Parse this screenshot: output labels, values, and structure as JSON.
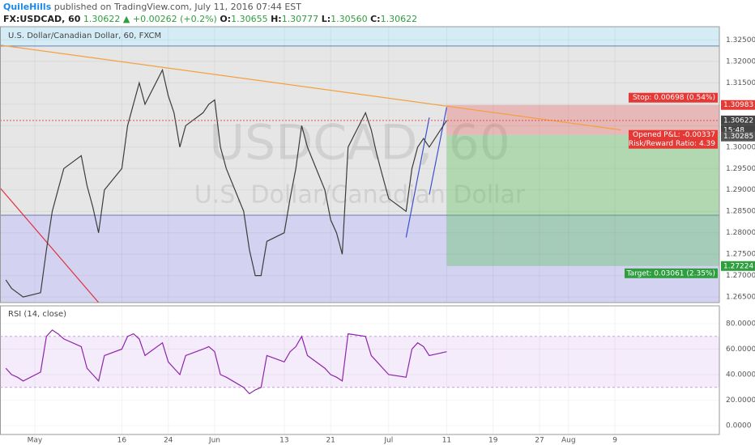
{
  "header": {
    "author": "QuileHills",
    "published": "published on TradingView.com, July 11, 2016 07:44 EST",
    "symbol": "FX:USDCAD, 60",
    "last": "1.30622",
    "change": "▲ +0.00262 (+0.2%)",
    "ohlc": [
      {
        "key": "O:",
        "value": "1.30655"
      },
      {
        "key": "H:",
        "value": "1.30777"
      },
      {
        "key": "L:",
        "value": "1.30560"
      },
      {
        "key": "C:",
        "value": "1.30622"
      }
    ]
  },
  "chart_data": [
    {
      "type": "line",
      "title": "U.S. Dollar/Canadian Dollar, 60, FXCM",
      "watermark": "USDCAD, 60",
      "watermark_subtitle": "U.S. Dollar/Canadian Dollar",
      "color": "#3c3c3c",
      "x": [
        "2016-04-26",
        "2016-04-27",
        "2016-04-28",
        "2016-04-29",
        "2016-05-02",
        "2016-05-03",
        "2016-05-04",
        "2016-05-05",
        "2016-05-06",
        "2016-05-09",
        "2016-05-10",
        "2016-05-11",
        "2016-05-12",
        "2016-05-13",
        "2016-05-16",
        "2016-05-17",
        "2016-05-18",
        "2016-05-19",
        "2016-05-20",
        "2016-05-23",
        "2016-05-24",
        "2016-05-25",
        "2016-05-26",
        "2016-05-27",
        "2016-05-30",
        "2016-05-31",
        "2016-06-01",
        "2016-06-02",
        "2016-06-03",
        "2016-06-06",
        "2016-06-07",
        "2016-06-08",
        "2016-06-09",
        "2016-06-10",
        "2016-06-13",
        "2016-06-14",
        "2016-06-15",
        "2016-06-16",
        "2016-06-17",
        "2016-06-20",
        "2016-06-21",
        "2016-06-22",
        "2016-06-23",
        "2016-06-24",
        "2016-06-27",
        "2016-06-28",
        "2016-06-29",
        "2016-06-30",
        "2016-07-01",
        "2016-07-04",
        "2016-07-05",
        "2016-07-06",
        "2016-07-07",
        "2016-07-08",
        "2016-07-11"
      ],
      "values": [
        1.269,
        1.267,
        1.266,
        1.265,
        1.266,
        1.276,
        1.285,
        1.29,
        1.295,
        1.298,
        1.291,
        1.286,
        1.28,
        1.29,
        1.295,
        1.305,
        1.31,
        1.315,
        1.31,
        1.318,
        1.312,
        1.308,
        1.3,
        1.305,
        1.308,
        1.31,
        1.311,
        1.3,
        1.295,
        1.285,
        1.276,
        1.27,
        1.27,
        1.278,
        1.28,
        1.288,
        1.295,
        1.305,
        1.3,
        1.29,
        1.283,
        1.28,
        1.275,
        1.3,
        1.308,
        1.304,
        1.298,
        1.293,
        1.288,
        1.285,
        1.295,
        1.3,
        1.302,
        1.3,
        1.30622
      ],
      "xlim": [
        "2016-04-25",
        "2016-08-27"
      ],
      "xticks": [
        {
          "value": "2016-05-01",
          "label": "May"
        },
        {
          "value": "2016-05-16",
          "label": "16"
        },
        {
          "value": "2016-05-24",
          "label": "24"
        },
        {
          "value": "2016-06-01",
          "label": "Jun"
        },
        {
          "value": "2016-06-13",
          "label": "13"
        },
        {
          "value": "2016-06-21",
          "label": "21"
        },
        {
          "value": "2016-07-01",
          "label": "Jul"
        },
        {
          "value": "2016-07-11",
          "label": "11"
        },
        {
          "value": "2016-07-19",
          "label": "19"
        },
        {
          "value": "2016-07-27",
          "label": "27"
        },
        {
          "value": "2016-08-01",
          "label": "Aug"
        },
        {
          "value": "2016-08-09",
          "label": "9"
        }
      ],
      "ylim": [
        1.2637,
        1.3281
      ],
      "yticks": [
        {
          "value": 1.325,
          "label": "1.32500"
        },
        {
          "value": 1.32,
          "label": "1.32000"
        },
        {
          "value": 1.315,
          "label": "1.31500"
        },
        {
          "value": 1.31,
          "label": "1.31000"
        },
        {
          "value": 1.305,
          "label": "1.30500"
        },
        {
          "value": 1.3,
          "label": "1.30000"
        },
        {
          "value": 1.295,
          "label": "1.29500"
        },
        {
          "value": 1.29,
          "label": "1.29000"
        },
        {
          "value": 1.285,
          "label": "1.28500"
        },
        {
          "value": 1.28,
          "label": "1.28000"
        },
        {
          "value": 1.275,
          "label": "1.27500"
        },
        {
          "value": 1.27,
          "label": "1.27000"
        },
        {
          "value": 1.265,
          "label": "1.26500"
        }
      ],
      "grid": true,
      "levels": [
        1.3236,
        1.2841
      ],
      "zone_colors": [
        "#d4ecf6",
        "#e6e6e6",
        "#d3d3f1"
      ],
      "trendlines": [
        {
          "x": [
            "2016-04-25",
            "2016-08-10"
          ],
          "values": [
            1.3238,
            1.304
          ],
          "color": "#f5a040"
        },
        {
          "x": [
            "2016-04-25",
            "2016-05-12"
          ],
          "values": [
            1.2905,
            1.2637
          ],
          "color": "#e0303a"
        },
        {
          "x": [
            "2016-07-04",
            "2016-07-08"
          ],
          "values": [
            1.2789,
            1.3069
          ],
          "color": "#3a4fd0"
        },
        {
          "x": [
            "2016-07-08",
            "2016-07-11"
          ],
          "values": [
            1.2889,
            1.3093
          ],
          "color": "#3a4fd0"
        }
      ],
      "last_price": 1.30622,
      "countdown": "15:48",
      "position": {
        "start": "2016-07-11",
        "stop": 1.30983,
        "entry": 1.30285,
        "target": 1.27224,
        "stop_label": "Stop: 0.00698 (0.54%)",
        "pnl_label": "Opened P&L: -0.00337",
        "rr_label": "Risk/Reward Ratio: 4.39",
        "target_label": "Target: 0.03061 (2.35%)"
      }
    },
    {
      "type": "line",
      "title": "RSI (14, close)",
      "color": "#8e24aa",
      "values": [
        45,
        40,
        38,
        35,
        42,
        70,
        75,
        72,
        68,
        62,
        45,
        40,
        35,
        55,
        60,
        70,
        72,
        68,
        55,
        65,
        50,
        45,
        40,
        55,
        60,
        62,
        58,
        40,
        38,
        30,
        25,
        28,
        30,
        55,
        50,
        58,
        62,
        70,
        55,
        45,
        40,
        38,
        35,
        72,
        70,
        55,
        50,
        45,
        40,
        38,
        60,
        65,
        62,
        55,
        58
      ],
      "ylim": [
        -7,
        94
      ],
      "yticks": [
        {
          "value": 80,
          "label": "80.0000"
        },
        {
          "value": 60,
          "label": "60.0000"
        },
        {
          "value": 40,
          "label": "40.0000"
        },
        {
          "value": 20,
          "label": "20.0000"
        },
        {
          "value": 0,
          "label": "0.0000"
        }
      ],
      "band": [
        30,
        70
      ]
    }
  ]
}
